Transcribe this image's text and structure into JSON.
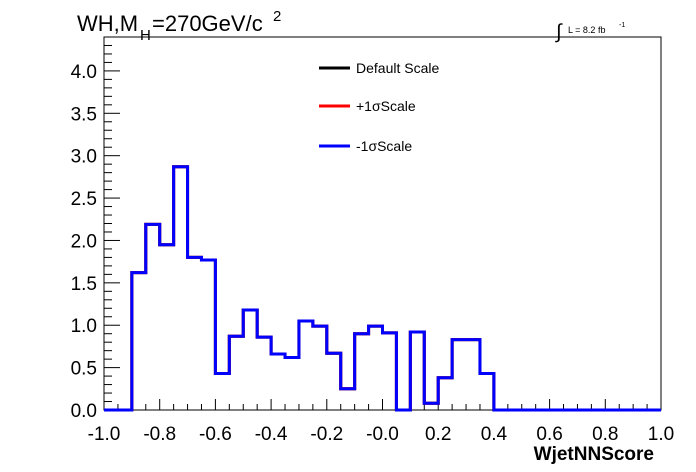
{
  "chart_data": {
    "type": "histogram-step",
    "title": {
      "main": "WH,M",
      "subscript": "H",
      "rest": "=270GeV/c",
      "superscript": "2"
    },
    "lumi_label": {
      "integral_symbol": "∫",
      "text": "L = 8.2 fb",
      "superscript": "-1"
    },
    "xlabel": "WjetNNScore",
    "ylabel": "",
    "xlim": [
      -1.0,
      1.0
    ],
    "ylim": [
      0.0,
      4.4
    ],
    "x_ticks": [
      {
        "value": -1.0,
        "label": "-1.0"
      },
      {
        "value": -0.8,
        "label": "-0.8"
      },
      {
        "value": -0.6,
        "label": "-0.6"
      },
      {
        "value": -0.4,
        "label": "-0.4"
      },
      {
        "value": -0.2,
        "label": "-0.2"
      },
      {
        "value": 0.0,
        "label": "-0.0"
      },
      {
        "value": 0.2,
        "label": "0.2"
      },
      {
        "value": 0.4,
        "label": "0.4"
      },
      {
        "value": 0.6,
        "label": "0.6"
      },
      {
        "value": 0.8,
        "label": "0.8"
      },
      {
        "value": 1.0,
        "label": "1.0"
      }
    ],
    "y_ticks": [
      {
        "value": 0.0,
        "label": "0.0"
      },
      {
        "value": 0.5,
        "label": "0.5"
      },
      {
        "value": 1.0,
        "label": "1.0"
      },
      {
        "value": 1.5,
        "label": "1.5"
      },
      {
        "value": 2.0,
        "label": "2.0"
      },
      {
        "value": 2.5,
        "label": "2.5"
      },
      {
        "value": 3.0,
        "label": "3.0"
      },
      {
        "value": 3.5,
        "label": "3.5"
      },
      {
        "value": 4.0,
        "label": "4.0"
      }
    ],
    "x_minor_step": 0.05,
    "y_minor_step": 0.1,
    "grid": false,
    "legend_position": "top-center",
    "bin_edges": [
      -1.0,
      -0.95,
      -0.9,
      -0.85,
      -0.8,
      -0.75,
      -0.7,
      -0.65,
      -0.6,
      -0.55,
      -0.5,
      -0.45,
      -0.4,
      -0.35,
      -0.3,
      -0.25,
      -0.2,
      -0.15,
      -0.1,
      -0.05,
      0.0,
      0.05,
      0.1,
      0.15,
      0.2,
      0.25,
      0.3,
      0.35,
      0.4,
      0.45,
      0.5,
      0.55,
      0.6,
      0.65,
      0.7,
      0.75,
      0.8,
      0.85,
      0.9,
      0.95,
      1.0
    ],
    "series": [
      {
        "name": "Default Scale",
        "color": "#000000",
        "values": [
          0,
          0,
          1.62,
          2.19,
          1.95,
          2.87,
          1.8,
          1.77,
          0.43,
          0.87,
          1.18,
          0.86,
          0.66,
          0.62,
          1.05,
          0.99,
          0.67,
          0.25,
          0.9,
          0.99,
          0.91,
          0,
          0.92,
          0.08,
          0.38,
          0.83,
          0.83,
          0.43,
          0,
          0,
          0,
          0,
          0,
          0,
          0,
          0,
          0,
          0,
          0,
          0
        ]
      },
      {
        "name": "+1σScale",
        "color": "#ff0000",
        "values": [
          0,
          0,
          1.62,
          2.19,
          1.95,
          2.87,
          1.8,
          1.77,
          0.43,
          0.87,
          1.18,
          0.86,
          0.66,
          0.62,
          1.05,
          0.99,
          0.67,
          0.25,
          0.9,
          0.99,
          0.91,
          0,
          0.92,
          0.08,
          0.38,
          0.83,
          0.83,
          0.43,
          0,
          0,
          0,
          0,
          0,
          0,
          0,
          0,
          0,
          0,
          0,
          0
        ]
      },
      {
        "name": "-1σScale",
        "color": "#0000ff",
        "values": [
          0,
          0,
          1.62,
          2.19,
          1.95,
          2.87,
          1.8,
          1.77,
          0.43,
          0.87,
          1.18,
          0.86,
          0.66,
          0.62,
          1.05,
          0.99,
          0.67,
          0.25,
          0.9,
          0.99,
          0.91,
          0,
          0.92,
          0.08,
          0.38,
          0.83,
          0.83,
          0.43,
          0,
          0,
          0,
          0,
          0,
          0,
          0,
          0,
          0,
          0,
          0,
          0
        ]
      }
    ]
  }
}
